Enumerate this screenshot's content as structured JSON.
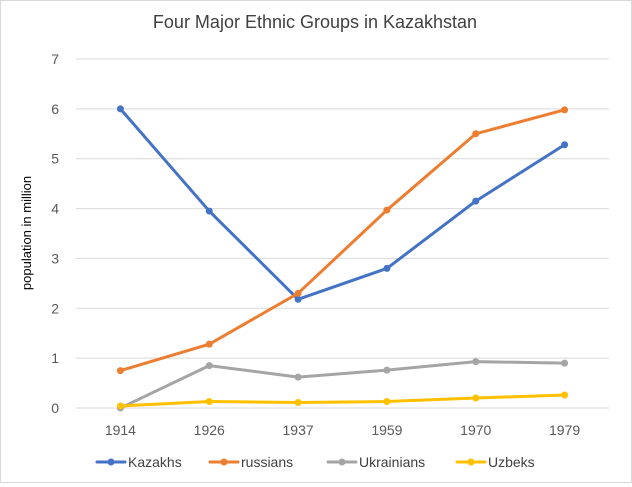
{
  "chart_data": {
    "type": "line",
    "title": "Four Major Ethnic Groups in Kazakhstan",
    "xlabel": "",
    "ylabel": "population  in million",
    "categories": [
      "1914",
      "1926",
      "1937",
      "1959",
      "1970",
      "1979"
    ],
    "ylim": [
      0,
      7
    ],
    "yticks": [
      "0",
      "1",
      "2",
      "3",
      "4",
      "5",
      "6",
      "7"
    ],
    "grid": "horizontal",
    "legend_position": "bottom",
    "series": [
      {
        "name": "Kazakhs",
        "color": "#4472c4",
        "values": [
          6.0,
          3.95,
          2.18,
          2.8,
          4.15,
          5.28
        ]
      },
      {
        "name": "russians",
        "color": "#ed7d31",
        "values": [
          0.75,
          1.28,
          2.3,
          3.97,
          5.5,
          5.98
        ]
      },
      {
        "name": "Ukrainians",
        "color": "#a5a5a5",
        "values": [
          0.0,
          0.85,
          0.62,
          0.76,
          0.93,
          0.9
        ]
      },
      {
        "name": "Uzbeks",
        "color": "#ffc000",
        "values": [
          0.04,
          0.13,
          0.11,
          0.13,
          0.2,
          0.26
        ]
      }
    ]
  }
}
